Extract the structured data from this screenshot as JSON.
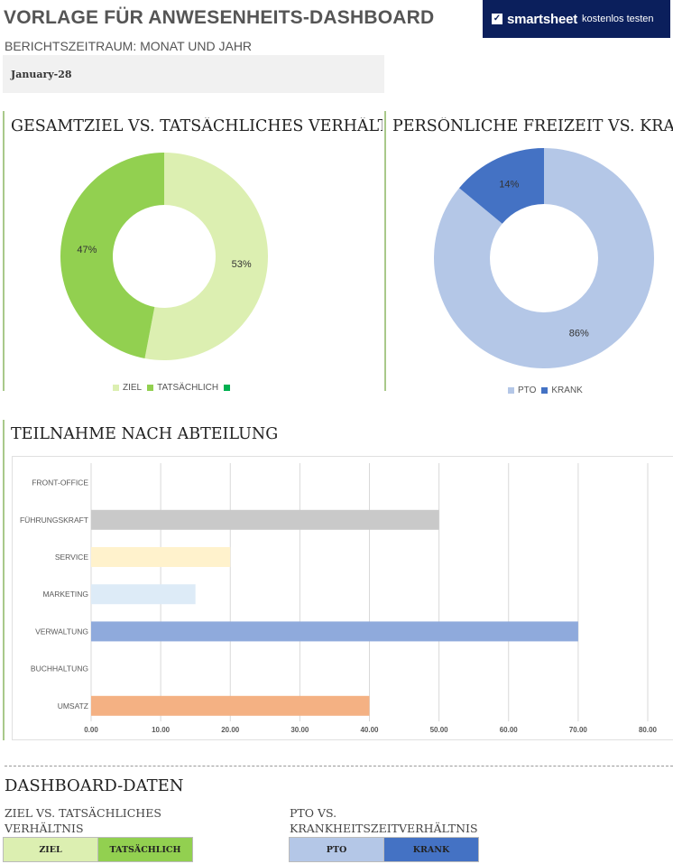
{
  "header": {
    "title": "VORLAGE FÜR ANWESENHEITS-DASHBOARD",
    "period_label": "BERICHTSZEITRAUM: MONAT UND JAHR",
    "period_value": "January-28"
  },
  "banner": {
    "logo_glyph": "✓",
    "brand": "smartsheet",
    "cta": "kostenlos testen"
  },
  "colors": {
    "ziel": "#dcefb1",
    "tatsaechlich": "#92d050",
    "extra": "#00b050",
    "pto": "#b4c7e7",
    "krank": "#4472c4"
  },
  "chart_data": [
    {
      "type": "pie",
      "title": "GESAMTZIEL VS. TATSÄCHLICHES VERHÄLTNIS",
      "donut": true,
      "labels": [
        "ZIEL",
        "TATSÄCHLICH"
      ],
      "values": [
        53,
        47
      ],
      "value_labels": [
        "53%",
        "47%"
      ],
      "legend": [
        "ZIEL",
        "TATSÄCHLICH",
        ""
      ],
      "legend_position": "bottom"
    },
    {
      "type": "pie",
      "title": "PERSÖNLICHE FREIZEIT VS. KRANKHEITSZEIT",
      "donut": true,
      "labels": [
        "PTO",
        "KRANK"
      ],
      "values": [
        86,
        14
      ],
      "value_labels": [
        "86%",
        "14%"
      ],
      "legend": [
        "PTO",
        "KRANK"
      ],
      "legend_position": "bottom"
    },
    {
      "type": "bar",
      "orientation": "horizontal",
      "title": "TEILNAHME NACH ABTEILUNG",
      "categories": [
        "FRONT-OFFICE",
        "FÜHRUNGSKRAFT",
        "SERVICE",
        "MARKETING",
        "VERWALTUNG",
        "BUCHHALTUNG",
        "UMSATZ"
      ],
      "values": [
        0,
        50,
        20,
        15,
        70,
        0,
        40
      ],
      "bar_colors": [
        "#c9c9c9",
        "#c9c9c9",
        "#fff2cc",
        "#ddebf7",
        "#8faadc",
        "#c9c9c9",
        "#f4b183"
      ],
      "xlim": [
        0,
        80
      ],
      "ticks": [
        "0.00",
        "10.00",
        "20.00",
        "30.00",
        "40.00",
        "50.00",
        "60.00",
        "70.00",
        "80.00"
      ],
      "grid": true
    }
  ],
  "data_section": {
    "title": "DASHBOARD-DATEN",
    "left_sub": "ZIEL VS. TATSÄCHLICHES VERHÄLTNIS",
    "right_sub": "PTO VS. KRANKHEITSZEITVERHÄLTNIS",
    "ziel_label": "ZIEL",
    "tatsaechlich_label": "TATSÄCHLICH",
    "pto_label": "PTO",
    "krank_label": "KRANK"
  }
}
